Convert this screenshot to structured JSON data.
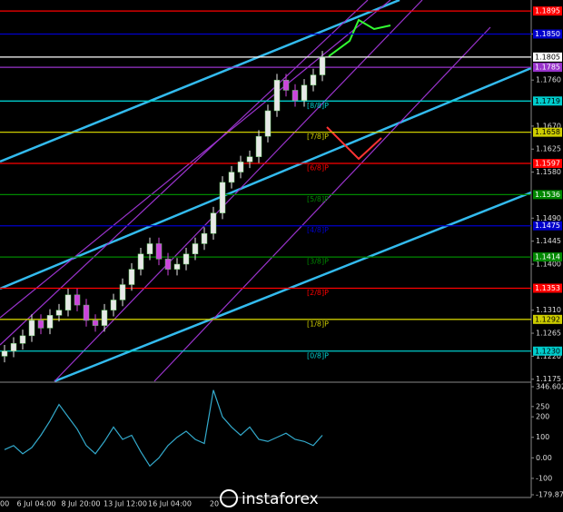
{
  "chart_data": [
    {
      "type": "candlestick",
      "categories": [
        "00",
        "6 Jul 04:00",
        "8 Jul 20:00",
        "13 Jul 12:00",
        "16 Jul 04:00",
        "20"
      ],
      "open": [
        1.122,
        1.123,
        1.1245,
        1.126,
        1.129,
        1.1275,
        1.13,
        1.131,
        1.134,
        1.132,
        1.129,
        1.128,
        1.131,
        1.133,
        1.136,
        1.139,
        1.142,
        1.144,
        1.141,
        1.139,
        1.14,
        1.142,
        1.144,
        1.146,
        1.15,
        1.156,
        1.158,
        1.16,
        1.161,
        1.165,
        1.17,
        1.176,
        1.174,
        1.172,
        1.175,
        1.177
      ],
      "high": [
        1.1242,
        1.1257,
        1.1272,
        1.1302,
        1.1302,
        1.1312,
        1.1322,
        1.1352,
        1.1352,
        1.1332,
        1.1302,
        1.1322,
        1.1342,
        1.1372,
        1.1402,
        1.1432,
        1.1452,
        1.1452,
        1.1422,
        1.1412,
        1.1432,
        1.1452,
        1.1472,
        1.1512,
        1.1572,
        1.1592,
        1.1612,
        1.1622,
        1.1662,
        1.1712,
        1.1772,
        1.1772,
        1.1752,
        1.1762,
        1.1782,
        1.1817
      ],
      "low": [
        1.1208,
        1.1218,
        1.1233,
        1.1248,
        1.1263,
        1.1263,
        1.1288,
        1.1298,
        1.1308,
        1.1278,
        1.1268,
        1.1268,
        1.1298,
        1.1318,
        1.1348,
        1.1378,
        1.1408,
        1.1398,
        1.1378,
        1.1378,
        1.1388,
        1.1408,
        1.1428,
        1.1448,
        1.1488,
        1.1548,
        1.1568,
        1.1588,
        1.1598,
        1.1638,
        1.1688,
        1.1728,
        1.1708,
        1.1708,
        1.1738,
        1.1758
      ],
      "close": [
        1.123,
        1.1245,
        1.126,
        1.129,
        1.1275,
        1.13,
        1.131,
        1.134,
        1.132,
        1.129,
        1.128,
        1.131,
        1.133,
        1.136,
        1.139,
        1.142,
        1.144,
        1.141,
        1.139,
        1.14,
        1.142,
        1.144,
        1.146,
        1.15,
        1.156,
        1.158,
        1.16,
        1.161,
        1.165,
        1.17,
        1.176,
        1.174,
        1.172,
        1.175,
        1.177,
        1.1805
      ],
      "up_color": "#e8e8e8",
      "down_color": "#cc44dd",
      "ylim": [
        1.1171,
        1.1913
      ],
      "yticks": [
        {
          "value": 1.185,
          "label": "1.1850"
        },
        {
          "value": 1.176,
          "label": "1.1760"
        },
        {
          "value": 1.167,
          "label": "1.1670"
        },
        {
          "value": 1.1625,
          "label": "1.1625"
        },
        {
          "value": 1.158,
          "label": "1.1580"
        },
        {
          "value": 1.149,
          "label": "1.1490"
        },
        {
          "value": 1.1445,
          "label": "1.1445"
        },
        {
          "value": 1.14,
          "label": "1.1400"
        },
        {
          "value": 1.131,
          "label": "1.1310"
        },
        {
          "value": 1.1265,
          "label": "1.1265"
        },
        {
          "value": 1.122,
          "label": "1.1220"
        },
        {
          "value": 1.1175,
          "label": "1.1175"
        }
      ],
      "levels": [
        {
          "value": 1.1895,
          "label": "1.1895",
          "color": "#ff0000"
        },
        {
          "value": 1.185,
          "label": "1.1850",
          "color": "#0000cc"
        },
        {
          "value": 1.1805,
          "label": "1.1805",
          "color": "#ffffff"
        },
        {
          "value": 1.1785,
          "label": "1.1785",
          "color": "#9933cc"
        },
        {
          "value": 1.1719,
          "label": "1.1719",
          "color": "#00cccc",
          "murray": "[8/8]P"
        },
        {
          "value": 1.1658,
          "label": "1.1658",
          "color": "#cccc00",
          "murray": "[7/8]P"
        },
        {
          "value": 1.1597,
          "label": "1.1597",
          "color": "#ff0000",
          "murray": "[6/8]P"
        },
        {
          "value": 1.1536,
          "label": "1.1536",
          "color": "#008800",
          "murray": "[5/8]P"
        },
        {
          "value": 1.1475,
          "label": "1.1475",
          "color": "#0000cc",
          "murray": "[4/8]P"
        },
        {
          "value": 1.1414,
          "label": "1.1414",
          "color": "#008800",
          "murray": "[3/8]P"
        },
        {
          "value": 1.1353,
          "label": "1.1353",
          "color": "#ff0000",
          "murray": "[2/8]P"
        },
        {
          "value": 1.1292,
          "label": "1.1292",
          "color": "#cccc00",
          "murray": "[1/8]P"
        },
        {
          "value": 1.123,
          "label": "1.1230",
          "color": "#00cccc",
          "murray": "[0/8]P"
        }
      ]
    },
    {
      "type": "line",
      "values": [
        40,
        60,
        20,
        50,
        110,
        180,
        260,
        200,
        140,
        60,
        20,
        80,
        150,
        90,
        110,
        30,
        -40,
        0,
        60,
        100,
        130,
        90,
        70,
        330,
        200,
        150,
        110,
        150,
        90,
        80,
        100,
        120,
        90,
        80,
        60,
        110
      ],
      "color": "#33aacc",
      "ylim": [
        -179.8745,
        346.6021
      ],
      "yticks": [
        {
          "value": 346.6021,
          "label": "346.6021"
        },
        250,
        200,
        100,
        {
          "value": 0,
          "label": "0.00"
        },
        -100,
        {
          "value": -179.8745,
          "label": "-179.8745"
        }
      ]
    }
  ],
  "watermark": "instaforex"
}
